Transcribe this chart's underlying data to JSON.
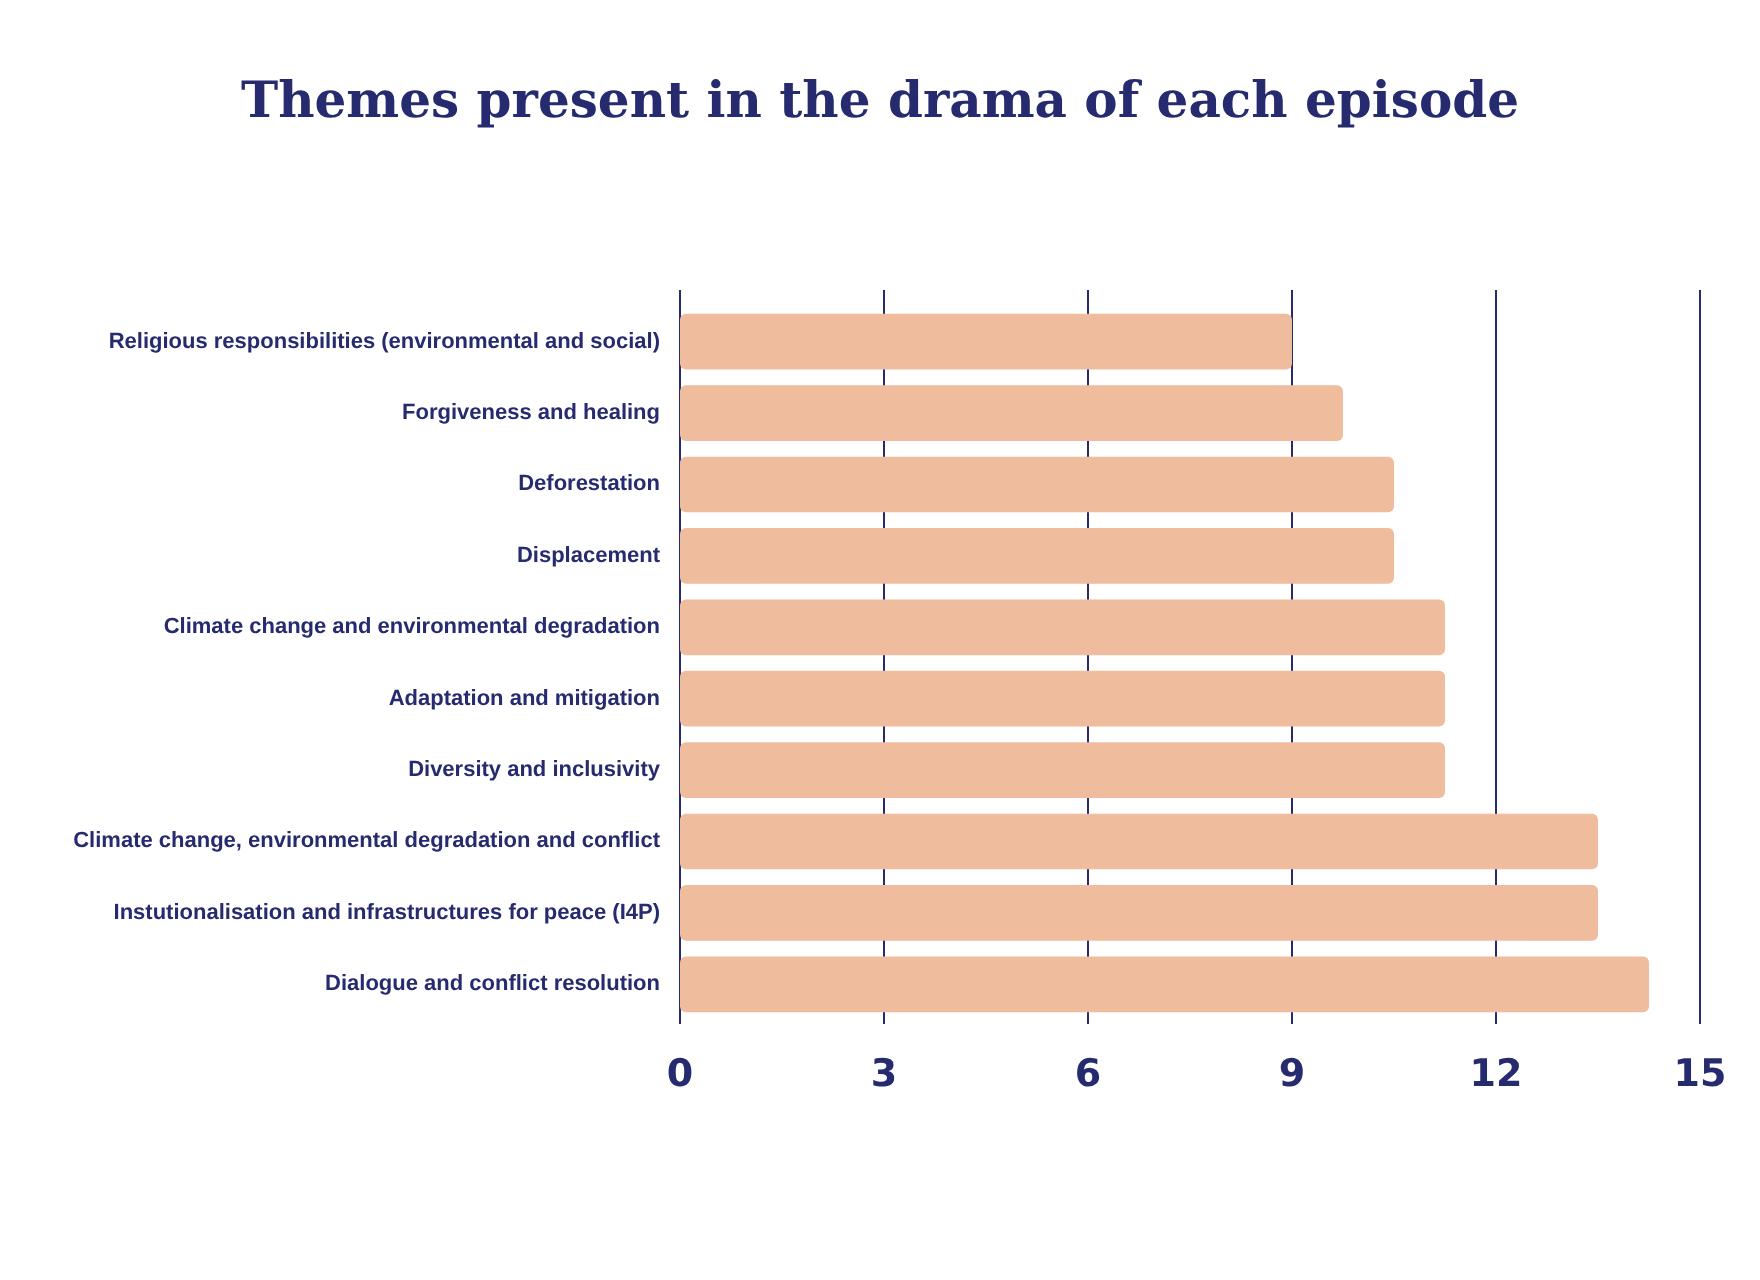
{
  "chart_data": {
    "type": "bar",
    "orientation": "horizontal",
    "title": "Themes present in the drama of each episode",
    "categories": [
      "Religious responsibilities (environmental and social)",
      "Forgiveness and healing",
      "Deforestation",
      "Displacement",
      "Climate change and environmental degradation",
      "Adaptation and mitigation",
      "Diversity and inclusivity",
      "Climate change, environmental degradation and conflict",
      "Instutionalisation and infrastructures for peace (I4P)",
      "Dialogue and conflict resolution"
    ],
    "values": [
      9,
      9.75,
      10.5,
      10.5,
      11.25,
      11.25,
      11.25,
      13.5,
      13.5,
      14.25
    ],
    "color": "#efbc9d",
    "xlim": [
      0,
      15
    ],
    "xticks": [
      0,
      3,
      6,
      9,
      12,
      15
    ],
    "grid": "x"
  }
}
